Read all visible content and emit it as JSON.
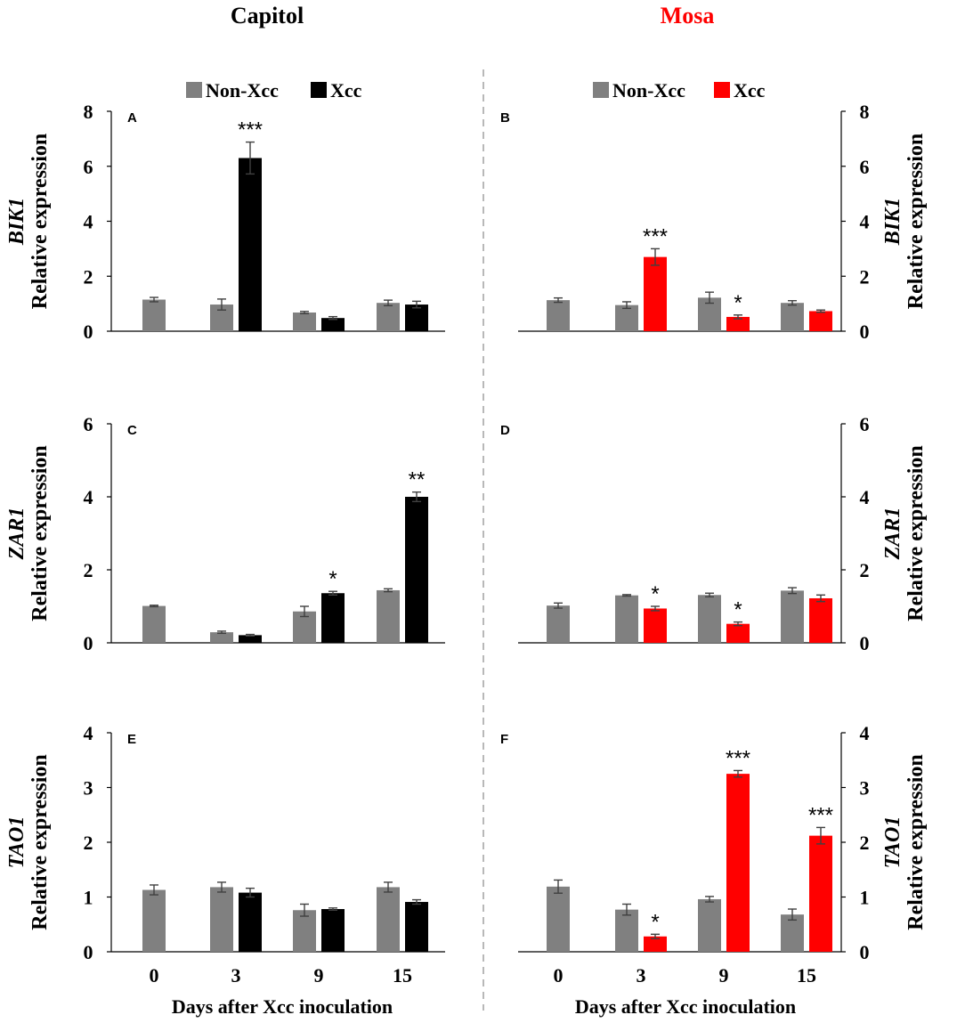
{
  "columns": [
    {
      "title": "Capitol",
      "color": "#000000"
    },
    {
      "title": "Mosa",
      "color": "#ff0000"
    }
  ],
  "colors": {
    "non_xcc": "#808080",
    "capitol_xcc": "#000000",
    "mosa_xcc": "#ff0000",
    "divider": "#a0a0a0",
    "error_bar": "#404040"
  },
  "legends": [
    {
      "non_xcc": "Non-Xcc",
      "xcc": "Xcc"
    },
    {
      "non_xcc": "Non-Xcc",
      "xcc": "Xcc"
    }
  ],
  "xlabel": "Days after Xcc inoculation",
  "chart_data": [
    {
      "panel": "A",
      "type": "bar",
      "gene": "BIK1",
      "ylabel": "Relative expression",
      "categories": [
        "0",
        "3",
        "9",
        "15"
      ],
      "ylim": [
        0,
        8
      ],
      "yticks": [
        0,
        2,
        4,
        6,
        8
      ],
      "series": [
        {
          "name": "Non-Xcc",
          "values": [
            1.15,
            0.97,
            0.68,
            1.03
          ],
          "errors": [
            0.08,
            0.2,
            0.04,
            0.1
          ]
        },
        {
          "name": "Xcc",
          "values": [
            null,
            6.3,
            0.48,
            0.97
          ],
          "errors": [
            null,
            0.58,
            0.05,
            0.12
          ]
        }
      ],
      "significance": [
        "",
        "***",
        "",
        ""
      ]
    },
    {
      "panel": "B",
      "type": "bar",
      "gene": "BIK1",
      "ylabel": "Relative expression",
      "categories": [
        "0",
        "3",
        "9",
        "15"
      ],
      "ylim": [
        0,
        8
      ],
      "yticks": [
        0,
        2,
        4,
        6,
        8
      ],
      "series": [
        {
          "name": "Non-Xcc",
          "values": [
            1.13,
            0.95,
            1.22,
            1.03
          ],
          "errors": [
            0.08,
            0.12,
            0.2,
            0.08
          ]
        },
        {
          "name": "Xcc",
          "values": [
            null,
            2.7,
            0.52,
            0.73
          ],
          "errors": [
            null,
            0.3,
            0.07,
            0.04
          ]
        }
      ],
      "significance": [
        "",
        "***",
        "*",
        ""
      ]
    },
    {
      "panel": "C",
      "type": "bar",
      "gene": "ZAR1",
      "ylabel": "Relative expression",
      "categories": [
        "0",
        "3",
        "9",
        "15"
      ],
      "ylim": [
        0,
        6
      ],
      "yticks": [
        0,
        2,
        4,
        6
      ],
      "series": [
        {
          "name": "Non-Xcc",
          "values": [
            1.01,
            0.29,
            0.86,
            1.44
          ],
          "errors": [
            0.02,
            0.03,
            0.14,
            0.04
          ]
        },
        {
          "name": "Xcc",
          "values": [
            null,
            0.21,
            1.36,
            4.0
          ],
          "errors": [
            null,
            0.02,
            0.05,
            0.13
          ]
        }
      ],
      "significance": [
        "",
        "",
        "*",
        "**"
      ]
    },
    {
      "panel": "D",
      "type": "bar",
      "gene": "ZAR1",
      "ylabel": "Relative expression",
      "categories": [
        "0",
        "3",
        "9",
        "15"
      ],
      "ylim": [
        0,
        6
      ],
      "yticks": [
        0,
        2,
        4,
        6
      ],
      "series": [
        {
          "name": "Non-Xcc",
          "values": [
            1.02,
            1.3,
            1.31,
            1.43
          ],
          "errors": [
            0.07,
            0.02,
            0.05,
            0.08
          ]
        },
        {
          "name": "Xcc",
          "values": [
            null,
            0.94,
            0.52,
            1.22
          ],
          "errors": [
            null,
            0.06,
            0.05,
            0.09
          ]
        }
      ],
      "significance": [
        "",
        "*",
        "*",
        ""
      ]
    },
    {
      "panel": "E",
      "type": "bar",
      "gene": "TAO1",
      "ylabel": "Relative expression",
      "categories": [
        "0",
        "3",
        "9",
        "15"
      ],
      "ylim": [
        0,
        4
      ],
      "yticks": [
        0,
        1,
        2,
        3,
        4
      ],
      "series": [
        {
          "name": "Non-Xcc",
          "values": [
            1.13,
            1.18,
            0.76,
            1.18
          ],
          "errors": [
            0.09,
            0.09,
            0.11,
            0.09
          ]
        },
        {
          "name": "Xcc",
          "values": [
            null,
            1.08,
            0.78,
            0.91
          ],
          "errors": [
            null,
            0.08,
            0.02,
            0.04
          ]
        }
      ],
      "significance": [
        "",
        "",
        "",
        ""
      ]
    },
    {
      "panel": "F",
      "type": "bar",
      "gene": "TAO1",
      "ylabel": "Relative expression",
      "categories": [
        "0",
        "3",
        "9",
        "15"
      ],
      "ylim": [
        0,
        4
      ],
      "yticks": [
        0,
        1,
        2,
        3,
        4
      ],
      "series": [
        {
          "name": "Non-Xcc",
          "values": [
            1.19,
            0.77,
            0.96,
            0.68
          ],
          "errors": [
            0.12,
            0.1,
            0.05,
            0.1
          ]
        },
        {
          "name": "Xcc",
          "values": [
            null,
            0.28,
            3.25,
            2.12
          ],
          "errors": [
            null,
            0.04,
            0.06,
            0.15
          ]
        }
      ],
      "significance": [
        "",
        "*",
        "***",
        "***"
      ]
    }
  ]
}
